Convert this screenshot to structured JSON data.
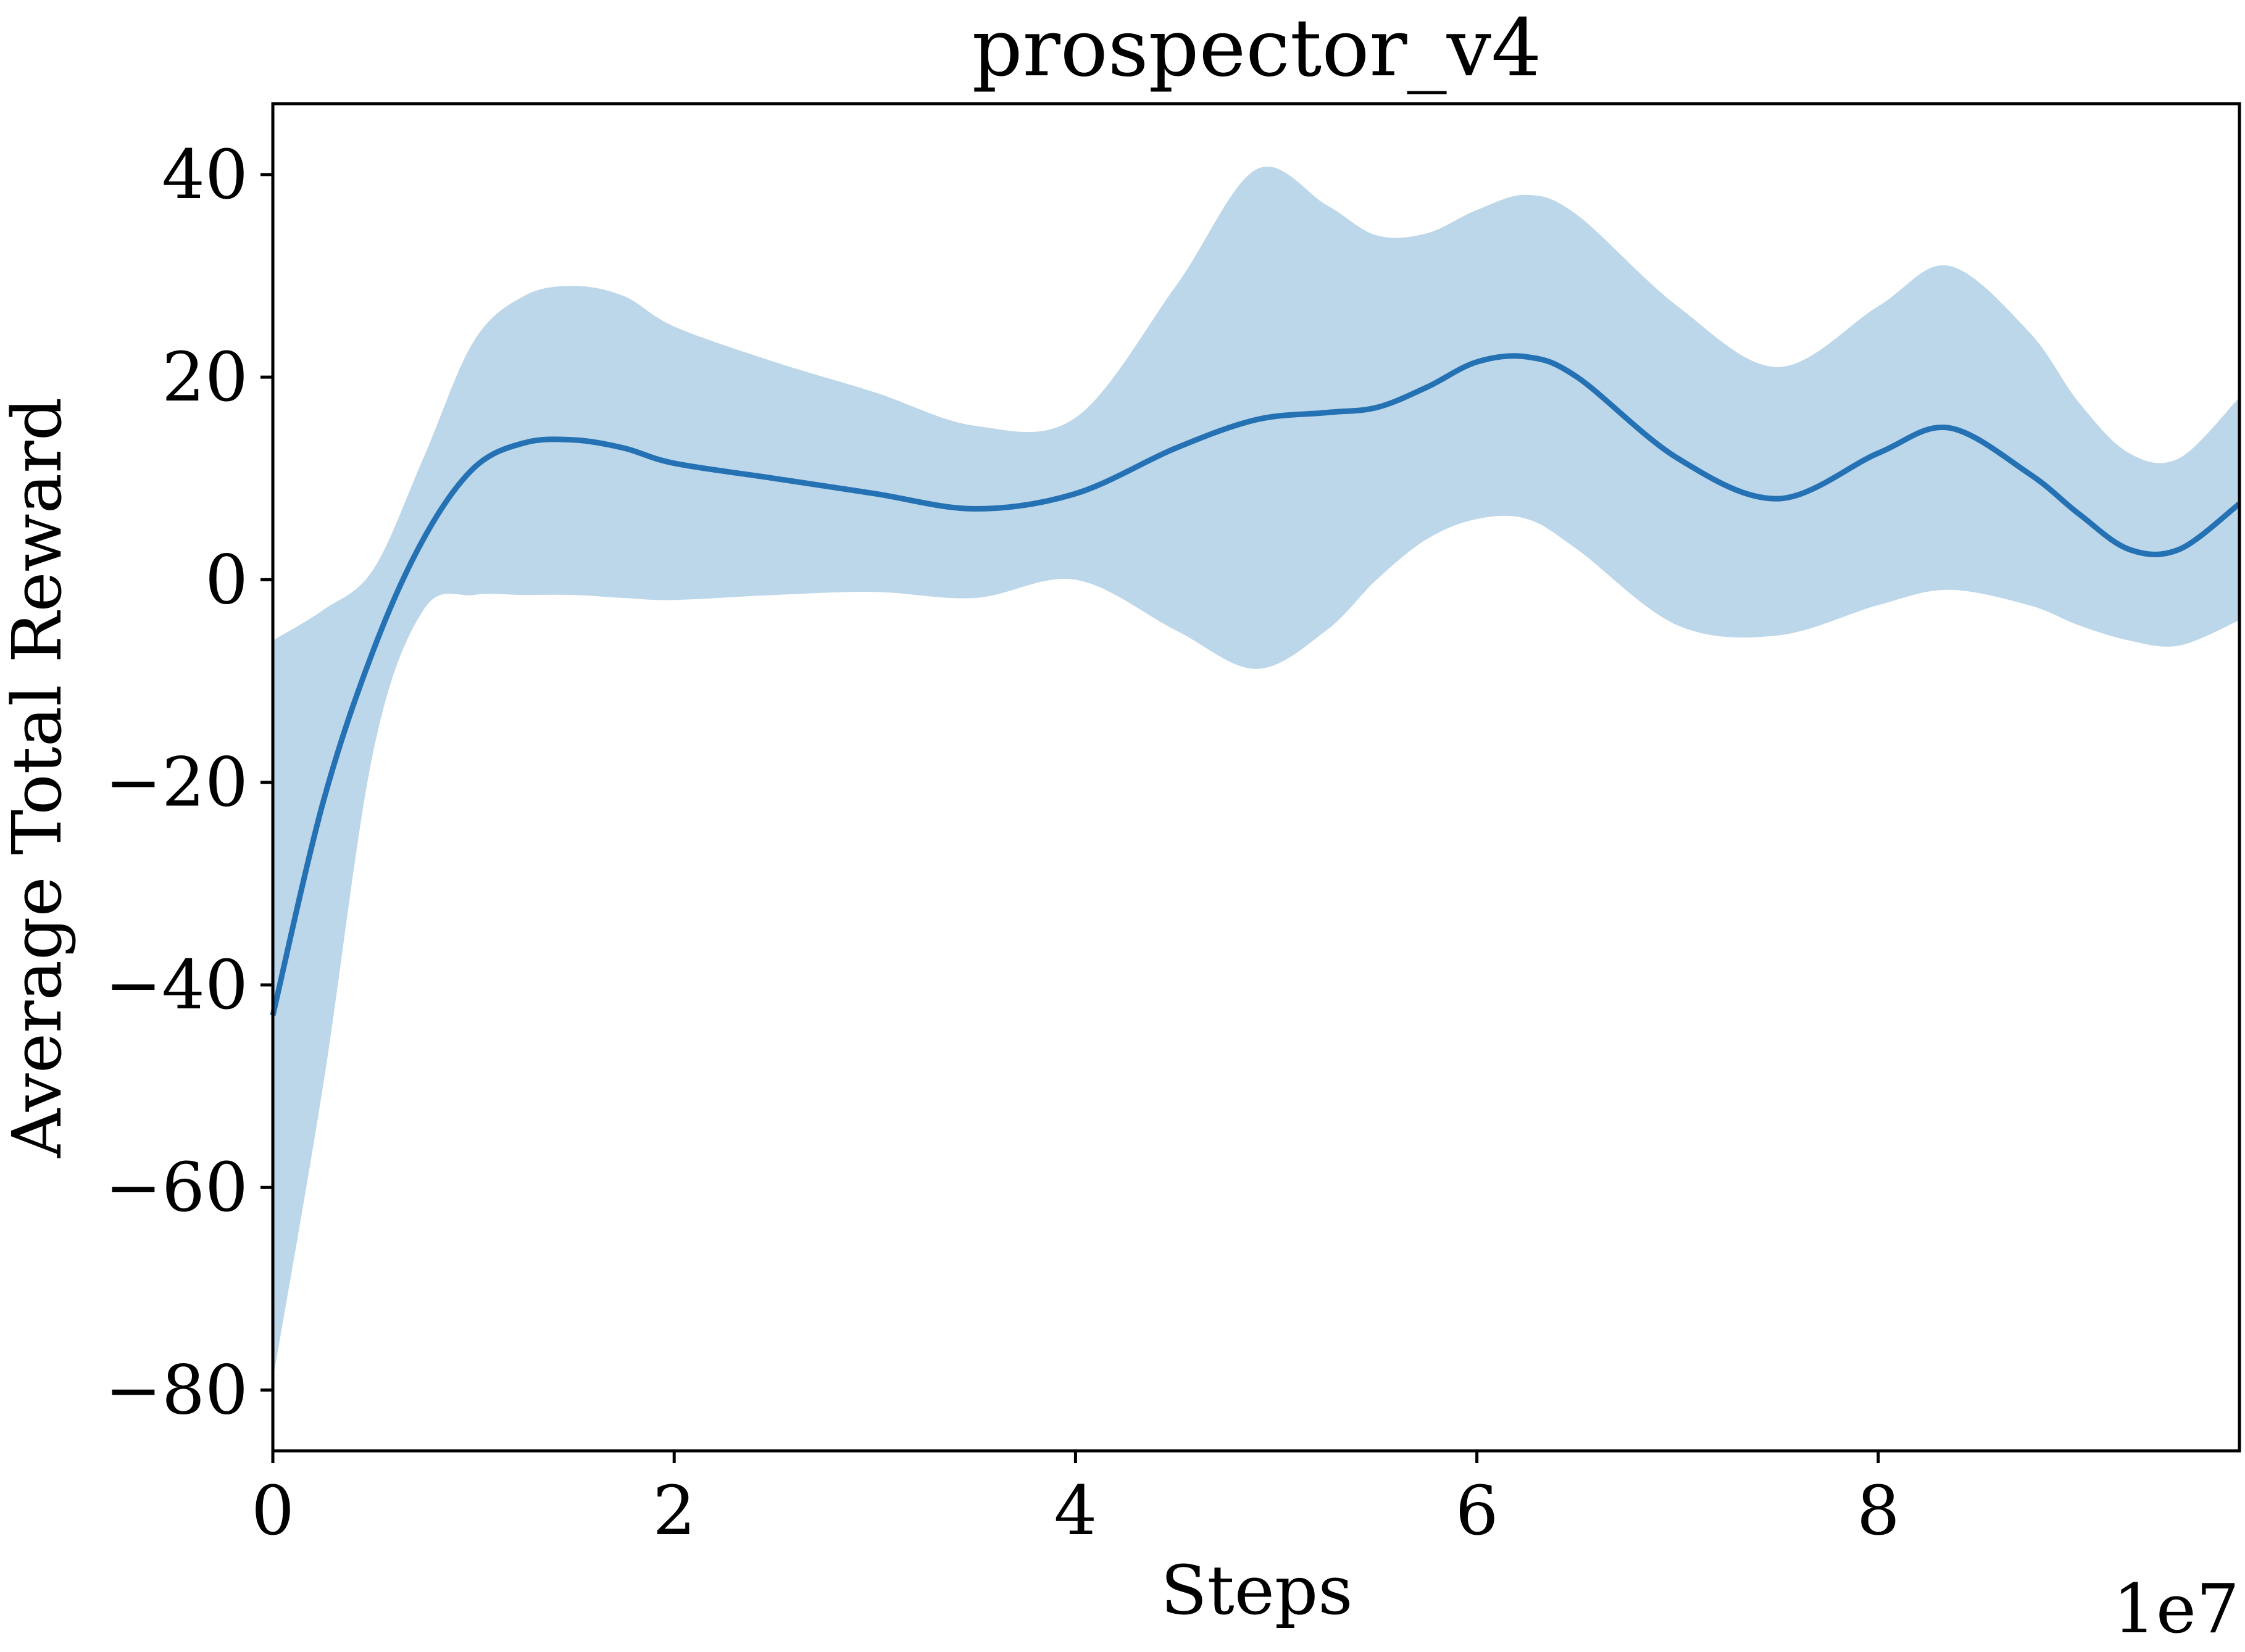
{
  "chart_data": {
    "type": "line",
    "title": "prospector_v4",
    "xlabel": "Steps",
    "ylabel": "Average Total Reward",
    "x_offset_label": "1e7",
    "xlim": [
      0,
      9.8
    ],
    "ylim": [
      -86,
      47
    ],
    "x_ticks": [
      0,
      2,
      4,
      6,
      8
    ],
    "x_tick_labels": [
      "0",
      "2",
      "4",
      "6",
      "8"
    ],
    "y_ticks": [
      -80,
      -60,
      -40,
      -20,
      0,
      20,
      40
    ],
    "y_tick_labels": [
      "−80",
      "−60",
      "−40",
      "−20",
      "0",
      "20",
      "40"
    ],
    "grid": false,
    "legend": "none",
    "colors": {
      "line": "#2471b4",
      "band": "#bcd6ea"
    },
    "series": [
      {
        "x": [
          0,
          0.25,
          0.5,
          0.75,
          1.0,
          1.25,
          1.5,
          1.75,
          2.0,
          2.5,
          3.0,
          3.5,
          4.0,
          4.5,
          4.9,
          5.25,
          5.5,
          5.75,
          6.0,
          6.25,
          6.5,
          7.0,
          7.5,
          8.0,
          8.35,
          8.75,
          9.0,
          9.25,
          9.5,
          9.8
        ],
        "y": [
          -43,
          -22,
          -7,
          4,
          11,
          13.5,
          13.8,
          13,
          11.5,
          10,
          8.5,
          7,
          8.5,
          13,
          15.8,
          16.5,
          17,
          19,
          21.5,
          22,
          20,
          12,
          8,
          12.5,
          15,
          10.5,
          6.5,
          3,
          3,
          7.5
        ],
        "upper": [
          -6,
          -3,
          1,
          12,
          23.5,
          28,
          29,
          28,
          25,
          21.5,
          18.5,
          15.2,
          16,
          29,
          40.5,
          37,
          34,
          34.2,
          36.5,
          38,
          36,
          27,
          21,
          27,
          31,
          24.5,
          17.5,
          12.5,
          12,
          18
        ],
        "lower": [
          -79,
          -50,
          -17,
          -3,
          -1.5,
          -1.5,
          -1.5,
          -1.8,
          -2,
          -1.5,
          -1.2,
          -1.8,
          0,
          -5,
          -8.8,
          -5,
          0,
          4,
          6,
          6,
          3,
          -4.5,
          -5.5,
          -2.5,
          -1,
          -2.5,
          -4.5,
          -6,
          -6.5,
          -4
        ]
      }
    ]
  }
}
